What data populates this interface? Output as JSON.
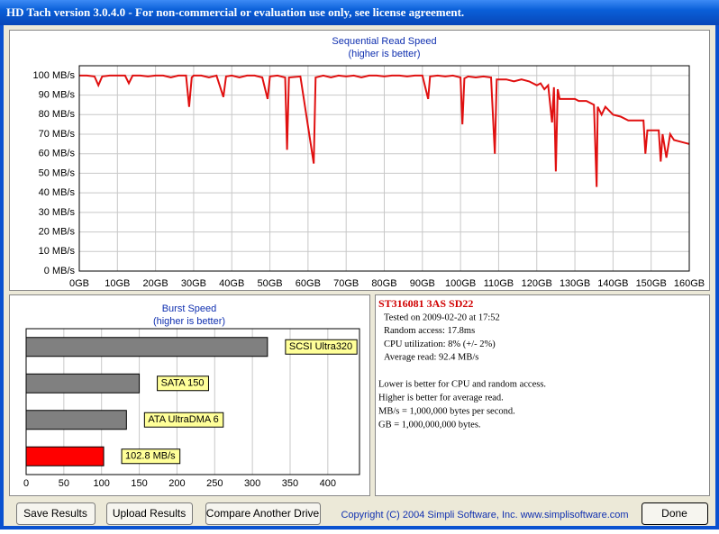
{
  "window": {
    "title": "HD Tach version 3.0.4.0  - For non-commercial or evaluation use only, see license agreement."
  },
  "chart_data": [
    {
      "type": "line",
      "title": "Sequential Read Speed",
      "subtitle": "(higher is better)",
      "color": "#e01010",
      "x": [
        0,
        2,
        4,
        5,
        6,
        8,
        10,
        12,
        13,
        14,
        16,
        18,
        20,
        22,
        24,
        26,
        28,
        28.8,
        29.5,
        30,
        32,
        34,
        36,
        37.8,
        38.5,
        40,
        42,
        44,
        46,
        48,
        49.4,
        50,
        52,
        54,
        54.5,
        55,
        58,
        61.5,
        62,
        64,
        66,
        68,
        70,
        72,
        74,
        76,
        78,
        80,
        82,
        84,
        86,
        88,
        90,
        91.5,
        92,
        94,
        96,
        98,
        100,
        100.5,
        101,
        102,
        104,
        106,
        108,
        109,
        109.5,
        112,
        114,
        116,
        118,
        120,
        121,
        122,
        123,
        124,
        124.5,
        125,
        125.5,
        126,
        128,
        130,
        131,
        133,
        135,
        135.7,
        136,
        137,
        138,
        140,
        142,
        144,
        146,
        148,
        148.5,
        149,
        150,
        152,
        152.5,
        153,
        154,
        155,
        156,
        158,
        160
      ],
      "values": [
        100,
        100,
        99.5,
        95,
        99.5,
        100,
        100,
        100,
        96,
        100,
        100,
        99.5,
        100,
        100,
        99,
        100,
        100,
        84,
        99,
        100,
        100,
        99,
        100,
        89,
        99.5,
        100,
        99,
        100,
        100,
        99,
        88,
        99.5,
        100,
        99,
        62,
        99,
        99.5,
        55,
        99,
        100,
        99,
        100,
        99.5,
        100,
        99,
        100,
        100,
        99.5,
        100,
        100,
        99.5,
        100,
        100,
        88,
        99.5,
        100,
        99.5,
        100,
        99,
        75,
        98.5,
        99.5,
        99,
        99.5,
        99,
        60,
        98,
        98,
        97,
        98,
        97,
        95,
        96,
        93,
        95,
        76,
        94,
        51,
        93,
        88,
        88,
        88,
        87,
        87,
        85,
        43,
        84,
        80,
        84,
        80,
        79,
        77,
        77,
        77,
        60,
        72,
        72,
        72,
        56,
        70,
        58,
        70,
        67,
        66,
        65
      ],
      "xlim": [
        0,
        160
      ],
      "xticks": [
        {
          "value": 0,
          "label": "0GB"
        },
        {
          "value": 10,
          "label": "10GB"
        },
        {
          "value": 20,
          "label": "20GB"
        },
        {
          "value": 30,
          "label": "30GB"
        },
        {
          "value": 40,
          "label": "40GB"
        },
        {
          "value": 50,
          "label": "50GB"
        },
        {
          "value": 60,
          "label": "60GB"
        },
        {
          "value": 70,
          "label": "70GB"
        },
        {
          "value": 80,
          "label": "80GB"
        },
        {
          "value": 90,
          "label": "90GB"
        },
        {
          "value": 100,
          "label": "100GB"
        },
        {
          "value": 110,
          "label": "110GB"
        },
        {
          "value": 120,
          "label": "120GB"
        },
        {
          "value": 130,
          "label": "130GB"
        },
        {
          "value": 140,
          "label": "140GB"
        },
        {
          "value": 150,
          "label": "150GB"
        },
        {
          "value": 160,
          "label": "160GB"
        }
      ],
      "ylim": [
        0,
        105
      ],
      "yticks": [
        {
          "value": 0,
          "label": "0 MB/s"
        },
        {
          "value": 10,
          "label": "10 MB/s"
        },
        {
          "value": 20,
          "label": "20 MB/s"
        },
        {
          "value": 30,
          "label": "30 MB/s"
        },
        {
          "value": 40,
          "label": "40 MB/s"
        },
        {
          "value": 50,
          "label": "50 MB/s"
        },
        {
          "value": 60,
          "label": "60 MB/s"
        },
        {
          "value": 70,
          "label": "70 MB/s"
        },
        {
          "value": 80,
          "label": "80 MB/s"
        },
        {
          "value": 90,
          "label": "90 MB/s"
        },
        {
          "value": 100,
          "label": "100 MB/s"
        }
      ],
      "grid": true
    },
    {
      "type": "hbar",
      "title": "Burst Speed",
      "subtitle": "(higher is better)",
      "categories": [
        "SCSI Ultra320",
        "SATA 150",
        "ATA UltraDMA 6",
        null
      ],
      "values": [
        320,
        150,
        133,
        102.8
      ],
      "value_labels": [
        null,
        null,
        null,
        "102.8 MB/s"
      ],
      "colors": [
        "#808080",
        "#808080",
        "#808080",
        "#ff0000"
      ],
      "xlim": [
        0,
        442
      ],
      "xticks": [
        0,
        50,
        100,
        150,
        200,
        250,
        300,
        350,
        400
      ],
      "grid": true
    }
  ],
  "info": {
    "drive": "ST316081 3AS SD22",
    "lines": [
      "Tested on 2009-02-20 at 17:52",
      "Random access: 17.8ms",
      "CPU utilization: 8% (+/- 2%)",
      "Average read: 92.4 MB/s"
    ],
    "notes": [
      "Lower is better for CPU and random access.",
      "Higher is better for average read.",
      "MB/s = 1,000,000 bytes per second.",
      "GB = 1,000,000,000 bytes."
    ]
  },
  "buttons": [
    "Save Results",
    "Upload Results",
    "Compare Another Drive",
    "Done"
  ],
  "copyright": "Copyright (C) 2004 Simpli Software, Inc. www.simplisoftware.com"
}
